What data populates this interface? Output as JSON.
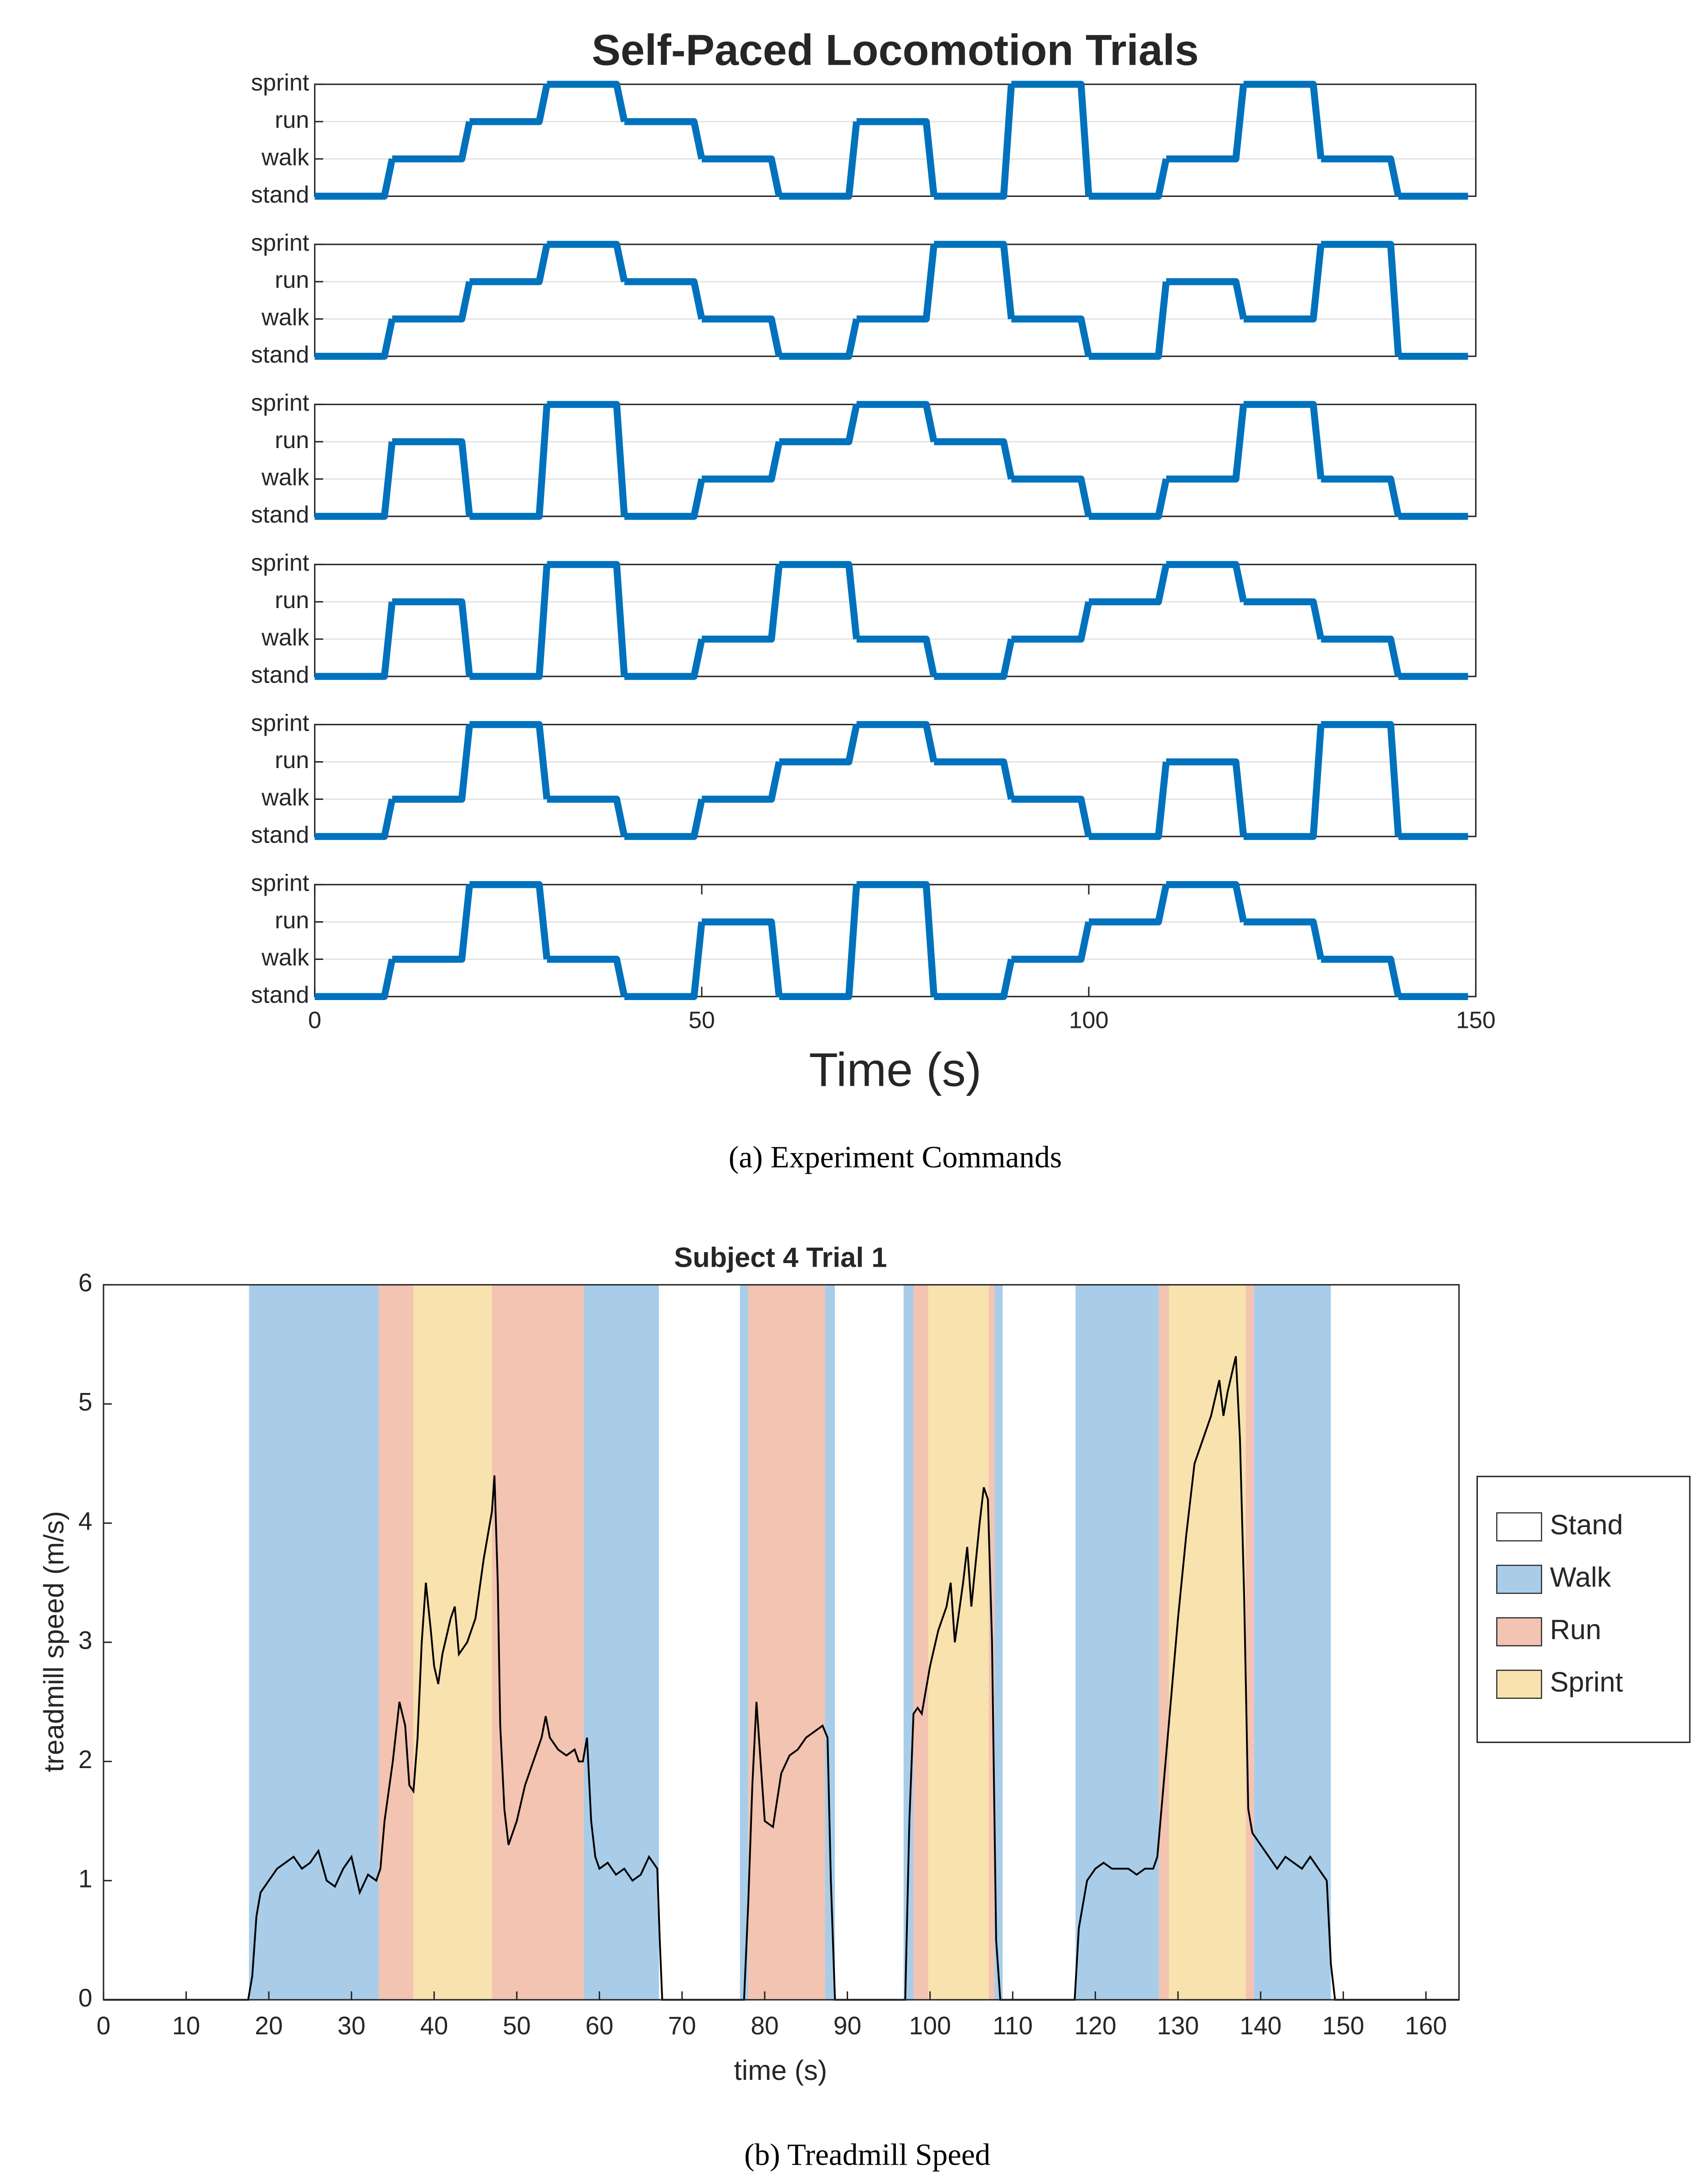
{
  "chart_data": [
    {
      "type": "step",
      "title": "Self-Paced Locomotion Trials",
      "xlabel": "Time (s)",
      "caption": "(a) Experiment Commands",
      "x": [
        0,
        10,
        20,
        30,
        40,
        50,
        60,
        70,
        80,
        90,
        100,
        110,
        120,
        130,
        140
      ],
      "xlim": [
        0,
        150
      ],
      "xticks": [
        0,
        50,
        100,
        150
      ],
      "ylim": [
        0,
        3
      ],
      "yticks": [
        {
          "value": 0,
          "label": "stand"
        },
        {
          "value": 1,
          "label": "walk"
        },
        {
          "value": 2,
          "label": "run"
        },
        {
          "value": 3,
          "label": "sprint"
        }
      ],
      "grid": true,
      "series": [
        {
          "color": "#0072bd",
          "values": [
            0,
            1,
            2,
            3,
            2,
            1,
            0,
            2,
            0,
            3,
            0,
            1,
            3,
            1,
            0
          ]
        },
        {
          "color": "#0072bd",
          "values": [
            0,
            1,
            2,
            3,
            2,
            1,
            0,
            1,
            3,
            1,
            0,
            2,
            1,
            3,
            0
          ]
        },
        {
          "color": "#0072bd",
          "values": [
            0,
            2,
            0,
            3,
            0,
            1,
            2,
            3,
            2,
            1,
            0,
            1,
            3,
            1,
            0
          ]
        },
        {
          "color": "#0072bd",
          "values": [
            0,
            2,
            0,
            3,
            0,
            1,
            3,
            1,
            0,
            1,
            2,
            3,
            2,
            1,
            0
          ]
        },
        {
          "color": "#0072bd",
          "values": [
            0,
            1,
            3,
            1,
            0,
            1,
            2,
            3,
            2,
            1,
            0,
            2,
            0,
            3,
            0
          ]
        },
        {
          "color": "#0072bd",
          "values": [
            0,
            1,
            3,
            1,
            0,
            2,
            0,
            3,
            0,
            1,
            2,
            3,
            2,
            1,
            0
          ]
        }
      ]
    },
    {
      "type": "line",
      "title": "Subject 4 Trial 1",
      "xlabel": "time (s)",
      "ylabel": "treadmill speed (m/s)",
      "caption": "(b) Treadmill Speed",
      "xlim": [
        0,
        164
      ],
      "xticks": [
        0,
        10,
        20,
        30,
        40,
        50,
        60,
        70,
        80,
        90,
        100,
        110,
        120,
        130,
        140,
        150,
        160
      ],
      "ylim": [
        0,
        6
      ],
      "yticks": [
        0,
        1,
        2,
        3,
        4,
        5,
        6
      ],
      "grid": false,
      "color": "#000000",
      "x": [
        0,
        17.5,
        18,
        18.5,
        19,
        20,
        21,
        22,
        23,
        24,
        25,
        26,
        27,
        28,
        29,
        30,
        31,
        32,
        33,
        33.5,
        34,
        35,
        35.8,
        36.5,
        37,
        37.5,
        38,
        38.5,
        39,
        39.6,
        40,
        40.5,
        41,
        42,
        42.5,
        43,
        44,
        45,
        46,
        47,
        47.3,
        47.7,
        48,
        48.5,
        49,
        50,
        51,
        52,
        53,
        53.5,
        54,
        55,
        56,
        57,
        57.5,
        58,
        58.5,
        59,
        59.5,
        60,
        61,
        62,
        63,
        64,
        65,
        66,
        67,
        67.3,
        67.6,
        77.5,
        78,
        78.5,
        79,
        79.5,
        80,
        81,
        82,
        83,
        84,
        85,
        86,
        87,
        87.6,
        88,
        88.5,
        97,
        97.5,
        98,
        98.5,
        99,
        100,
        101,
        102,
        102.5,
        103,
        104,
        104.5,
        105,
        106,
        106.5,
        107,
        107.5,
        108,
        108.5,
        117.5,
        118,
        119,
        120,
        121,
        122,
        123,
        124,
        125,
        126,
        127,
        127.5,
        128,
        129,
        130,
        131,
        132,
        133,
        134,
        135,
        135.5,
        136,
        137,
        137.5,
        138,
        138.5,
        139,
        140,
        141,
        142,
        143,
        144,
        145,
        146,
        147,
        148,
        148.5,
        149,
        164
      ],
      "values": [
        0,
        0,
        0.2,
        0.7,
        0.9,
        1.0,
        1.1,
        1.15,
        1.2,
        1.1,
        1.15,
        1.25,
        1.0,
        0.95,
        1.1,
        1.2,
        0.9,
        1.05,
        1.0,
        1.1,
        1.5,
        2.0,
        2.5,
        2.3,
        1.8,
        1.75,
        2.2,
        3.0,
        3.5,
        3.1,
        2.8,
        2.65,
        2.9,
        3.2,
        3.3,
        2.9,
        3.0,
        3.2,
        3.7,
        4.1,
        4.4,
        3.5,
        2.3,
        1.6,
        1.3,
        1.5,
        1.8,
        2.0,
        2.2,
        2.38,
        2.2,
        2.1,
        2.05,
        2.1,
        2.0,
        2.0,
        2.2,
        1.5,
        1.2,
        1.1,
        1.15,
        1.05,
        1.1,
        1.0,
        1.05,
        1.2,
        1.1,
        0.5,
        0,
        0,
        0.8,
        1.8,
        2.5,
        2.0,
        1.5,
        1.45,
        1.9,
        2.05,
        2.1,
        2.2,
        2.25,
        2.3,
        2.2,
        1.0,
        0,
        0,
        1.5,
        2.4,
        2.45,
        2.4,
        2.8,
        3.1,
        3.3,
        3.5,
        3.0,
        3.5,
        3.8,
        3.3,
        4.0,
        4.3,
        4.2,
        3.0,
        0.5,
        0,
        0,
        0.6,
        1.0,
        1.1,
        1.15,
        1.1,
        1.1,
        1.1,
        1.05,
        1.1,
        1.1,
        1.2,
        1.6,
        2.4,
        3.2,
        3.9,
        4.5,
        4.7,
        4.9,
        5.2,
        4.9,
        5.1,
        5.4,
        4.7,
        3.4,
        1.6,
        1.4,
        1.3,
        1.2,
        1.1,
        1.2,
        1.15,
        1.1,
        1.2,
        1.1,
        1.0,
        0.3,
        0,
        0
      ],
      "bands": {
        "start": [
          0,
          17.6,
          33.3,
          37.5,
          47,
          58.1,
          67.2,
          77,
          78,
          87.3,
          88.5,
          96.8,
          98,
          99.8,
          107.1,
          107.8,
          108.8,
          117.6,
          127.7,
          128.9,
          138.2,
          139.2,
          148.5
        ],
        "end": [
          17.6,
          33.3,
          37.5,
          47,
          58.1,
          67.2,
          77,
          78,
          87.3,
          88.5,
          96.8,
          98,
          99.8,
          107.1,
          107.8,
          108.8,
          117.6,
          127.7,
          128.9,
          138.2,
          139.2,
          148.5,
          164
        ],
        "state": [
          "Stand",
          "Walk",
          "Run",
          "Sprint",
          "Run",
          "Walk",
          "Stand",
          "Walk",
          "Run",
          "Walk",
          "Stand",
          "Walk",
          "Run",
          "Sprint",
          "Run",
          "Walk",
          "Stand",
          "Walk",
          "Run",
          "Sprint",
          "Run",
          "Walk",
          "Stand"
        ]
      },
      "states": [
        {
          "name": "Stand",
          "color": "#ffffff"
        },
        {
          "name": "Walk",
          "color": "#a9cde9"
        },
        {
          "name": "Run",
          "color": "#f2c4b1"
        },
        {
          "name": "Sprint",
          "color": "#f8e2ae"
        }
      ],
      "legend": "right"
    }
  ]
}
